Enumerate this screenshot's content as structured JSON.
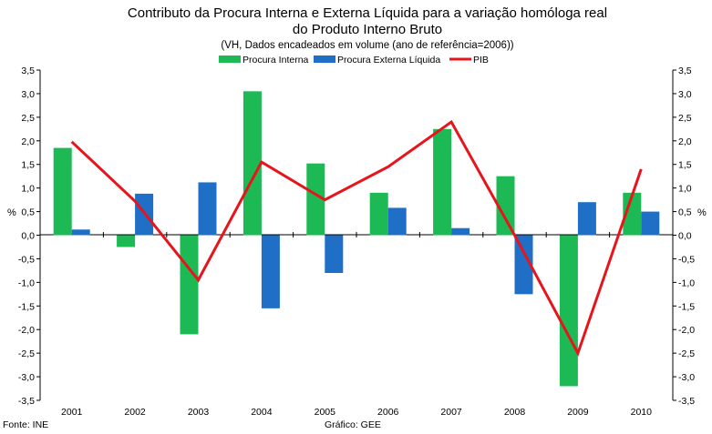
{
  "chart_data": {
    "type": "bar",
    "title_lines": [
      "Contributo da Procura Interna e Externa Líquida para a variação homóloga real",
      "do Produto Interno Bruto"
    ],
    "subtitle": "(VH, Dados encadeados em volume (ano de referência=2006))",
    "ylabel_left": "%",
    "ylabel_right": "%",
    "ylim": [
      -3.5,
      3.5
    ],
    "y_ticks": [
      "3,5",
      "3,0",
      "2,5",
      "2,0",
      "1,5",
      "1,0",
      "0,5",
      "0,0",
      "-0,5",
      "-1,0",
      "-1,5",
      "-2,0",
      "-2,5",
      "-3,0",
      "-3,5"
    ],
    "categories": [
      "2001",
      "2002",
      "2003",
      "2004",
      "2005",
      "2006",
      "2007",
      "2008",
      "2009",
      "2010"
    ],
    "series": [
      {
        "name": "Procura Interna",
        "kind": "bar",
        "color": "#1db954",
        "values": [
          1.85,
          -0.25,
          -2.1,
          3.05,
          1.52,
          0.9,
          2.25,
          1.25,
          -3.2,
          0.9
        ]
      },
      {
        "name": "Procura Externa Líquida",
        "kind": "bar",
        "color": "#1f6fc6",
        "values": [
          0.12,
          0.88,
          1.12,
          -1.55,
          -0.8,
          0.58,
          0.15,
          -1.25,
          0.7,
          0.5
        ]
      },
      {
        "name": "PIB",
        "kind": "line",
        "color": "#e8141c",
        "values": [
          1.98,
          0.72,
          -0.95,
          1.55,
          0.75,
          1.45,
          2.4,
          0.0,
          -2.5,
          1.4
        ]
      }
    ],
    "grid": false,
    "legend_position": "top"
  },
  "footer": {
    "source": "Fonte:  INE",
    "credit": "Gráfico: GEE"
  }
}
